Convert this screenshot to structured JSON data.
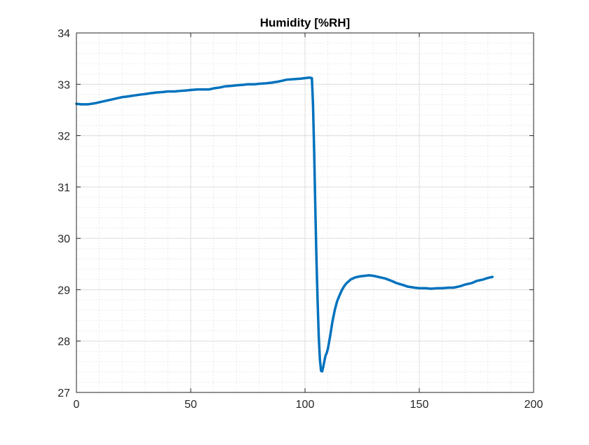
{
  "chart_data": {
    "type": "line",
    "title": "Humidity [%RH]",
    "xlabel": "",
    "ylabel": "",
    "xlim": [
      0,
      200
    ],
    "ylim": [
      27,
      34
    ],
    "xticks": [
      0,
      50,
      100,
      150,
      200
    ],
    "yticks": [
      27,
      28,
      29,
      30,
      31,
      32,
      33,
      34
    ],
    "xtick_labels": [
      "0",
      "50",
      "100",
      "150",
      "200"
    ],
    "ytick_labels": [
      "27",
      "28",
      "29",
      "30",
      "31",
      "32",
      "33",
      "34"
    ],
    "grid": true,
    "minor_grid": true,
    "x_minor_step": 10,
    "y_minor_step": 0.2,
    "legend": "none",
    "series": [
      {
        "color": "#0072BD",
        "x": [
          0,
          2,
          5,
          8,
          10,
          12,
          15,
          18,
          20,
          22,
          25,
          28,
          30,
          33,
          35,
          38,
          40,
          43,
          45,
          48,
          50,
          53,
          55,
          58,
          60,
          63,
          65,
          68,
          70,
          73,
          75,
          78,
          80,
          83,
          85,
          88,
          90,
          92,
          95,
          98,
          100,
          102,
          103,
          103.5,
          104,
          104.5,
          105,
          105.5,
          106,
          106.5,
          107,
          107.5,
          108,
          108.5,
          109,
          109.5,
          110,
          111,
          112,
          113,
          114,
          115,
          116,
          117,
          118,
          119,
          120,
          122,
          124,
          126,
          128,
          130,
          132,
          135,
          138,
          140,
          143,
          145,
          148,
          150,
          153,
          155,
          158,
          160,
          163,
          165,
          168,
          170,
          173,
          175,
          178,
          180,
          182
        ],
        "y": [
          32.62,
          32.61,
          32.61,
          32.63,
          32.65,
          32.67,
          32.7,
          32.73,
          32.75,
          32.76,
          32.78,
          32.8,
          32.81,
          32.83,
          32.84,
          32.85,
          32.86,
          32.86,
          32.87,
          32.88,
          32.89,
          32.9,
          32.9,
          32.9,
          32.92,
          32.94,
          32.96,
          32.97,
          32.98,
          32.99,
          33.0,
          33.0,
          33.01,
          33.02,
          33.03,
          33.05,
          33.07,
          33.09,
          33.1,
          33.11,
          33.12,
          33.13,
          33.12,
          32.6,
          31.7,
          30.6,
          29.6,
          28.8,
          28.1,
          27.65,
          27.42,
          27.41,
          27.5,
          27.62,
          27.72,
          27.77,
          27.85,
          28.1,
          28.38,
          28.6,
          28.77,
          28.88,
          28.98,
          29.06,
          29.12,
          29.16,
          29.2,
          29.24,
          29.26,
          29.27,
          29.28,
          29.27,
          29.25,
          29.22,
          29.17,
          29.13,
          29.09,
          29.06,
          29.04,
          29.03,
          29.03,
          29.02,
          29.03,
          29.03,
          29.04,
          29.04,
          29.07,
          29.1,
          29.13,
          29.17,
          29.2,
          29.23,
          29.25
        ]
      }
    ]
  }
}
